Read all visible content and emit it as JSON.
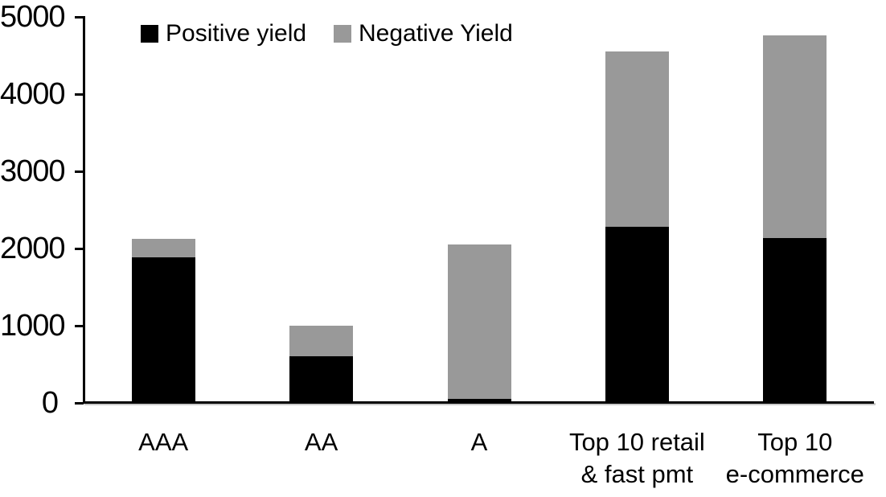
{
  "chart_data": {
    "type": "bar",
    "stacked": true,
    "title": "",
    "xlabel": "",
    "ylabel": "",
    "categories": [
      "AAA",
      "AA",
      "A",
      "Top 10 retail\n& fast pmt",
      "Top 10\ne-commerce"
    ],
    "series": [
      {
        "name": "Positive yield",
        "color": "#000000",
        "values": [
          1890,
          600,
          50,
          2280,
          2140
        ]
      },
      {
        "name": "Negative Yield",
        "color": "#999999",
        "values": [
          230,
          400,
          2000,
          2270,
          2620
        ]
      }
    ],
    "totals": [
      2120,
      1000,
      2050,
      4550,
      4760
    ],
    "ylim": [
      0,
      5000
    ],
    "yticks": [
      0,
      1000,
      2000,
      3000,
      4000,
      5000
    ],
    "grid": false,
    "legend_position": "top",
    "background_color": "#ffffff",
    "axis_color": "#000000"
  }
}
